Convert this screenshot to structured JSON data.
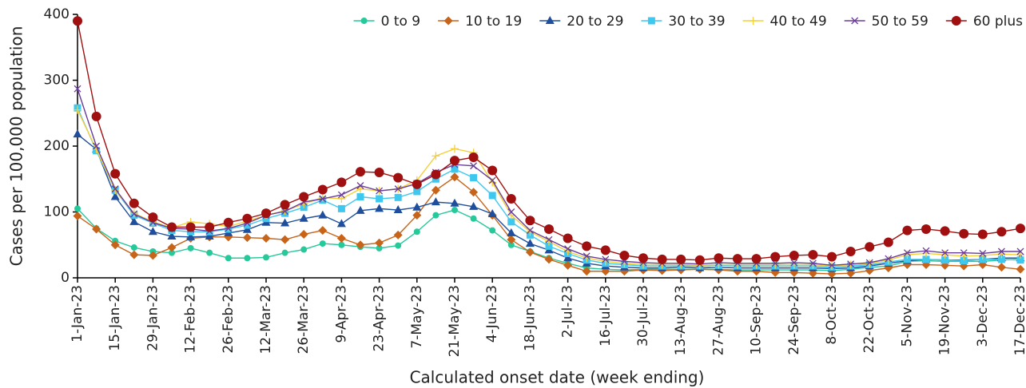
{
  "chart_data": {
    "type": "line",
    "x_label": "Calculated onset date (week ending)",
    "y_label": "Cases per 100,000 population",
    "categories": [
      "1-Jan-23",
      null,
      "15-Jan-23",
      null,
      "29-Jan-23",
      null,
      "12-Feb-23",
      null,
      "26-Feb-23",
      null,
      "12-Mar-23",
      null,
      "26-Mar-23",
      null,
      "9-Apr-23",
      null,
      "23-Apr-23",
      null,
      "7-May-23",
      null,
      "21-May-23",
      null,
      "4-Jun-23",
      null,
      "18-Jun-23",
      null,
      "2-Jul-23",
      null,
      "16-Jul-23",
      null,
      "30-Jul-23",
      null,
      "13-Aug-23",
      null,
      "27-Aug-23",
      null,
      "10-Sep-23",
      null,
      "24-Sep-23",
      null,
      "8-Oct-23",
      null,
      "22-Oct-23",
      null,
      "5-Nov-23",
      null,
      "19-Nov-23",
      null,
      "3-Dec-23",
      null,
      "17-Dec-23"
    ],
    "ylim": [
      0,
      400
    ],
    "yticks": [
      0,
      100,
      200,
      300,
      400
    ],
    "grid": false,
    "legend": "top-right",
    "series": [
      {
        "name": "0 to 9",
        "color": "#25c99a",
        "marker": "circle",
        "values": [
          105,
          75,
          56,
          46,
          40,
          38,
          45,
          38,
          30,
          30,
          31,
          38,
          43,
          52,
          50,
          47,
          45,
          49,
          70,
          95,
          103,
          90,
          72,
          50,
          40,
          30,
          22,
          15,
          13,
          12,
          13,
          13,
          13,
          13,
          13,
          12,
          12,
          12,
          12,
          12,
          11,
          13,
          16,
          18,
          25,
          26,
          25,
          25,
          25,
          27,
          28
        ]
      },
      {
        "name": "10 to 19",
        "color": "#c8641a",
        "marker": "diamond",
        "values": [
          94,
          74,
          50,
          35,
          34,
          46,
          60,
          62,
          62,
          61,
          60,
          58,
          66,
          72,
          60,
          50,
          53,
          65,
          95,
          133,
          153,
          130,
          95,
          58,
          39,
          28,
          19,
          10,
          10,
          10,
          12,
          11,
          12,
          13,
          12,
          10,
          10,
          8,
          8,
          7,
          6,
          7,
          11,
          15,
          20,
          20,
          19,
          18,
          20,
          16,
          13
        ]
      },
      {
        "name": "20 to 29",
        "color": "#1f4e9c",
        "marker": "triangle",
        "values": [
          218,
          195,
          123,
          85,
          70,
          63,
          62,
          63,
          68,
          73,
          84,
          83,
          90,
          95,
          82,
          102,
          105,
          103,
          107,
          115,
          113,
          108,
          97,
          68,
          52,
          42,
          30,
          22,
          18,
          16,
          15,
          15,
          16,
          15,
          16,
          15,
          15,
          15,
          15,
          15,
          14,
          15,
          18,
          22,
          26,
          28,
          27,
          27,
          28,
          30,
          30
        ]
      },
      {
        "name": "30 to 39",
        "color": "#3ec8f0",
        "marker": "square",
        "values": [
          258,
          193,
          133,
          95,
          83,
          72,
          70,
          70,
          74,
          80,
          90,
          98,
          107,
          118,
          105,
          123,
          120,
          122,
          131,
          150,
          165,
          152,
          125,
          85,
          65,
          48,
          37,
          27,
          22,
          20,
          18,
          18,
          18,
          18,
          19,
          18,
          18,
          18,
          18,
          18,
          16,
          18,
          20,
          24,
          28,
          28,
          27,
          26,
          28,
          28,
          27
        ]
      },
      {
        "name": "40 to 49",
        "color": "#f5d03a",
        "marker": "plus",
        "values": [
          255,
          195,
          133,
          98,
          85,
          76,
          85,
          82,
          78,
          86,
          95,
          102,
          112,
          122,
          120,
          135,
          132,
          135,
          148,
          185,
          196,
          190,
          145,
          95,
          70,
          55,
          40,
          30,
          25,
          22,
          20,
          20,
          20,
          19,
          20,
          20,
          20,
          20,
          20,
          20,
          18,
          20,
          22,
          27,
          35,
          37,
          35,
          33,
          34,
          36,
          35
        ]
      },
      {
        "name": "50 to 59",
        "color": "#6a3d9a",
        "marker": "x",
        "values": [
          287,
          200,
          135,
          97,
          84,
          75,
          74,
          71,
          75,
          83,
          95,
          101,
          115,
          120,
          126,
          140,
          132,
          135,
          143,
          160,
          172,
          170,
          148,
          100,
          72,
          58,
          44,
          33,
          28,
          25,
          23,
          22,
          22,
          21,
          23,
          22,
          22,
          22,
          23,
          22,
          19,
          21,
          23,
          29,
          38,
          41,
          38,
          38,
          37,
          40,
          40
        ]
      },
      {
        "name": "60 plus",
        "color": "#a01010",
        "marker": "bigcircle",
        "values": [
          390,
          245,
          158,
          113,
          92,
          77,
          77,
          77,
          84,
          90,
          98,
          111,
          123,
          134,
          145,
          161,
          160,
          152,
          142,
          157,
          178,
          183,
          163,
          120,
          87,
          74,
          60,
          48,
          42,
          34,
          30,
          28,
          28,
          27,
          30,
          29,
          29,
          32,
          34,
          35,
          32,
          40,
          47,
          54,
          72,
          74,
          71,
          67,
          66,
          70,
          75
        ]
      }
    ]
  }
}
